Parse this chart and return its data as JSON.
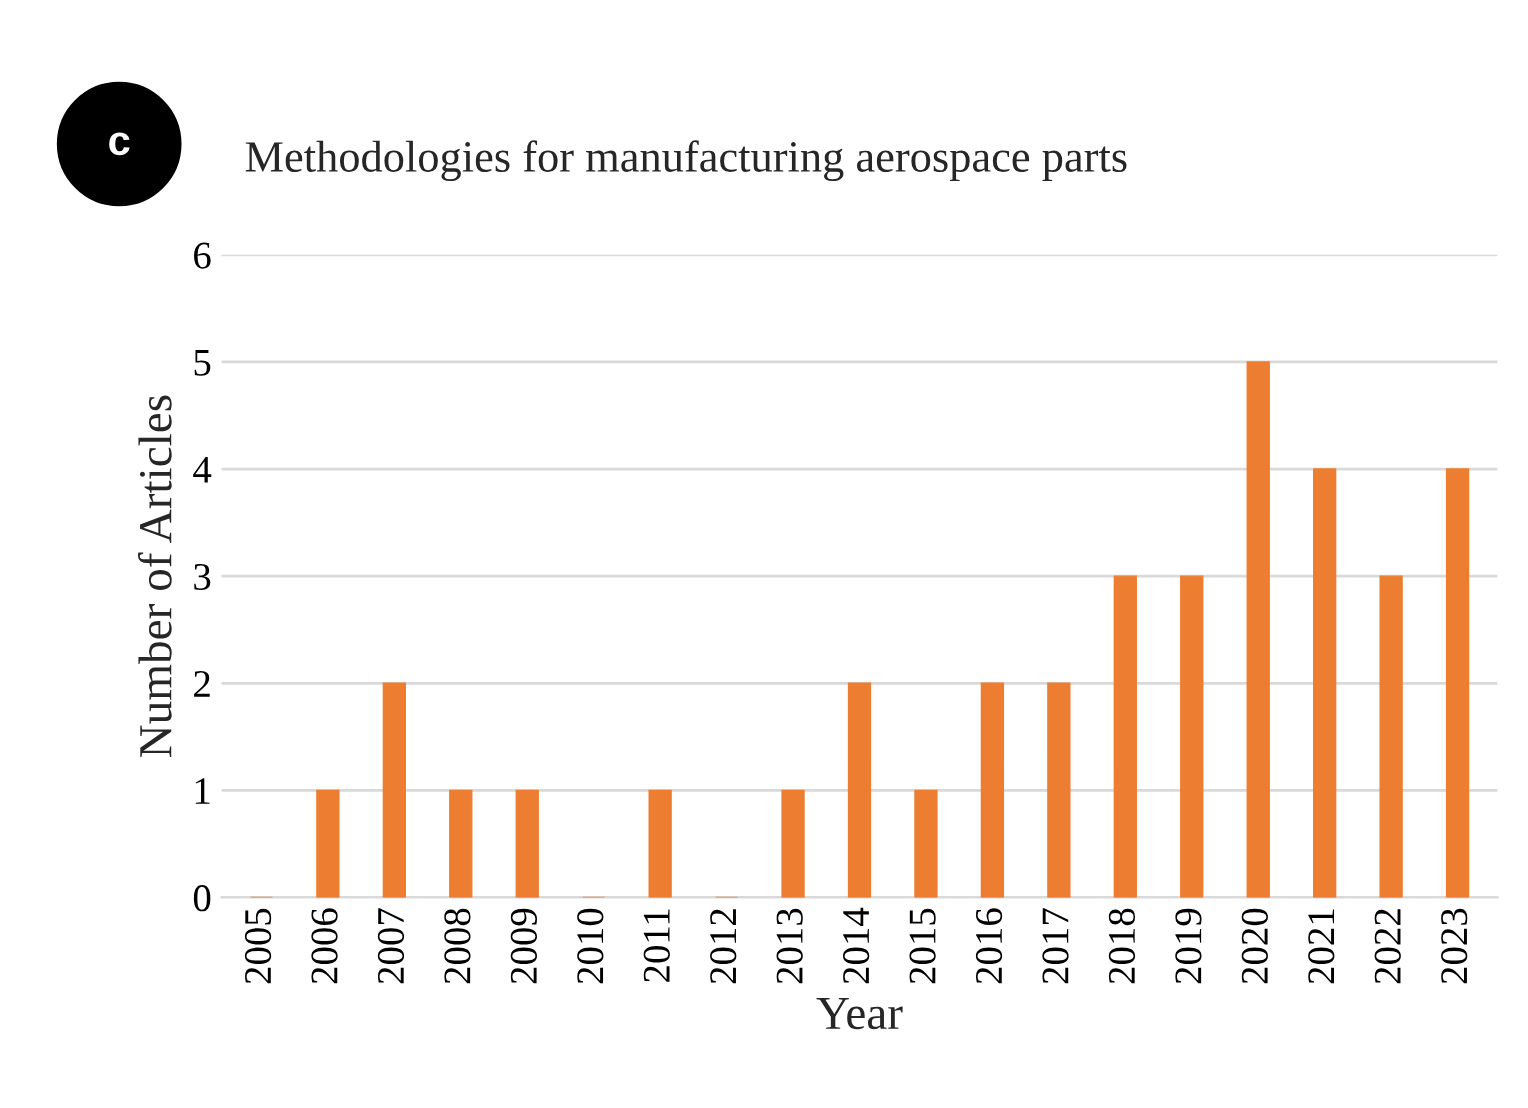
{
  "chart_data": {
    "type": "bar",
    "title": "Methodologies for manufacturing aerospace parts",
    "xlabel": "Year",
    "ylabel": "Number of Articles",
    "categories": [
      "2005",
      "2006",
      "2007",
      "2008",
      "2009",
      "2010",
      "2011",
      "2012",
      "2013",
      "2014",
      "2015",
      "2016",
      "2017",
      "2018",
      "2019",
      "2020",
      "2021",
      "2022",
      "2023"
    ],
    "values": [
      0,
      1,
      2,
      1,
      1,
      0,
      1,
      0,
      1,
      2,
      1,
      2,
      2,
      3,
      3,
      5,
      4,
      3,
      4
    ],
    "color": "#ed7d31",
    "ylim": [
      0,
      6
    ],
    "yticks": [
      0,
      1,
      2,
      3,
      4,
      5,
      6
    ],
    "grid": "y",
    "legend": false,
    "annotations": [
      "c"
    ]
  }
}
